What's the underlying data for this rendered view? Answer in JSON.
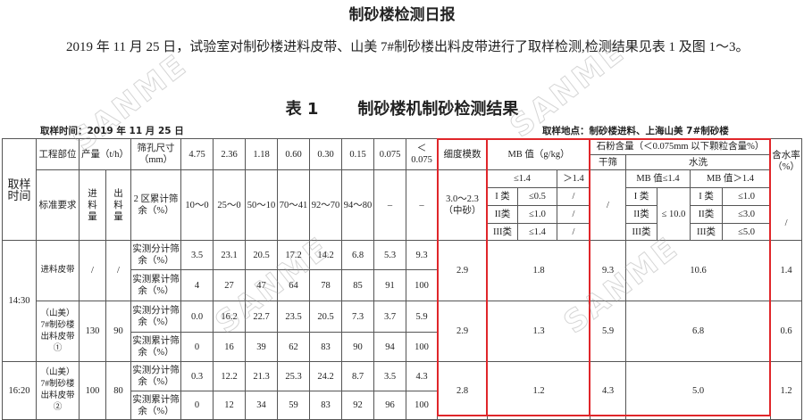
{
  "title": "制砂楼检测日报",
  "intro": "2019 年 11 月 25 日，试验室对制砂楼进料皮带、山美 7#制砂楼出料皮带进行了取样检测,检测结果见表 1 及图 1～3。",
  "table_title": {
    "no": "表 1",
    "name": "制砂楼机制砂检测结果"
  },
  "sample_time": "取样时间：2019 年 11 月 25 日",
  "sample_place": "取样地点：制砂楼进料、上海山美 7#制砂楼",
  "watermark": "SANME",
  "header": {
    "sample_time": "取样时间",
    "location": "工程部位",
    "output": "产量（t/h）",
    "sieve": "筛孔尺寸（mm）",
    "sizes": [
      "4.75",
      "2.36",
      "1.18",
      "0.60",
      "0.30",
      "0.15",
      "0.075",
      "＜0.075"
    ],
    "fineness": "细度模数",
    "mb": "MB 值（g/kg）",
    "stone": "石粉含量（＜0.075mm 以下颗粒含量%）",
    "dry": "干筛",
    "wash": "水洗",
    "moisture": "含水率（%）"
  },
  "standard": {
    "label": "标准要求",
    "in": "进料量",
    "out": "出料量",
    "zone": "2 区累计筛余（%）",
    "ranges": [
      "10～0",
      "25～0",
      "50～10",
      "70～41",
      "92～70",
      "94～80",
      "–",
      "–"
    ],
    "fineness": "3.0～2.3（中砂）",
    "mb_le": "≤1.4",
    "mb_gt": "＞1.4",
    "mb_rows": [
      [
        "I 类",
        "≤0.5",
        "/"
      ],
      [
        "II类",
        "≤1.0",
        "/"
      ],
      [
        "III类",
        "≤1.4",
        "/"
      ]
    ],
    "dry": "/",
    "wash_le": "MB 值≤1.4",
    "wash_gt": "MB 值＞1.4",
    "wash_le_val": "≤ 10.0",
    "wash_rows": [
      [
        "I 类",
        "I 类",
        "≤1.0"
      ],
      [
        "II类",
        "II类",
        "≤3.0"
      ],
      [
        "III类",
        "III类",
        "≤5.0"
      ]
    ],
    "moisture": "/"
  },
  "groups": [
    {
      "time": "14:30",
      "samples": [
        {
          "location": "进料皮带",
          "in": "/",
          "out": "/",
          "split": [
            "3.5",
            "23.1",
            "20.5",
            "17.2",
            "14.2",
            "6.8",
            "5.3",
            "9.3"
          ],
          "cum": [
            "4",
            "27",
            "47",
            "64",
            "78",
            "85",
            "91",
            "100"
          ],
          "fineness": "2.9",
          "mb": "1.8",
          "dry": "9.3",
          "wash": "10.6",
          "moisture": "1.4"
        },
        {
          "location": "（山美）7#制砂楼出料皮带①",
          "in": "130",
          "out": "90",
          "split": [
            "0.0",
            "16.2",
            "22.7",
            "23.5",
            "20.5",
            "7.3",
            "3.7",
            "5.9"
          ],
          "cum": [
            "0",
            "16",
            "39",
            "62",
            "83",
            "90",
            "94",
            "100"
          ],
          "fineness": "2.9",
          "mb": "1.3",
          "dry": "5.9",
          "wash": "6.8",
          "moisture": "0.6"
        }
      ]
    },
    {
      "time": "16:20",
      "samples": [
        {
          "location": "（山美）7#制砂楼出料皮带②",
          "in": "100",
          "out": "80",
          "split": [
            "0.3",
            "12.2",
            "21.3",
            "25.3",
            "24.2",
            "8.7",
            "3.5",
            "4.3"
          ],
          "cum": [
            "0",
            "12",
            "34",
            "59",
            "83",
            "92",
            "96",
            "100"
          ],
          "fineness": "2.8",
          "mb": "1.2",
          "dry": "4.3",
          "wash": "5.0",
          "moisture": "1.2"
        }
      ]
    }
  ],
  "row_labels": {
    "split": "实测分计筛余（%）",
    "cum": "实测累计筛余（%）"
  },
  "highlight_color": "#e0262a"
}
